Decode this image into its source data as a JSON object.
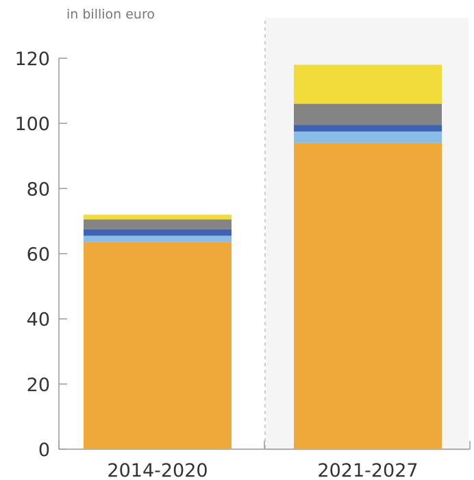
{
  "chart_data": {
    "type": "bar",
    "stacked": true,
    "unit_label": "in billion euro",
    "categories": [
      "2014-2020",
      "2021-2027"
    ],
    "ylim": [
      0,
      120
    ],
    "yticks": [
      0,
      20,
      40,
      60,
      80,
      100,
      120
    ],
    "grid": false,
    "legend": "none",
    "highlight_period": "2021-2027",
    "series": [
      {
        "color": "#EFA83A",
        "values": [
          63.5,
          94.0
        ]
      },
      {
        "color": "#89BCE6",
        "values": [
          2.0,
          3.5
        ]
      },
      {
        "color": "#3F62B4",
        "values": [
          2.0,
          2.0
        ]
      },
      {
        "color": "#848484",
        "values": [
          3.0,
          6.5
        ]
      },
      {
        "color": "#F1DC3B",
        "values": [
          1.5,
          12.0
        ]
      }
    ]
  }
}
